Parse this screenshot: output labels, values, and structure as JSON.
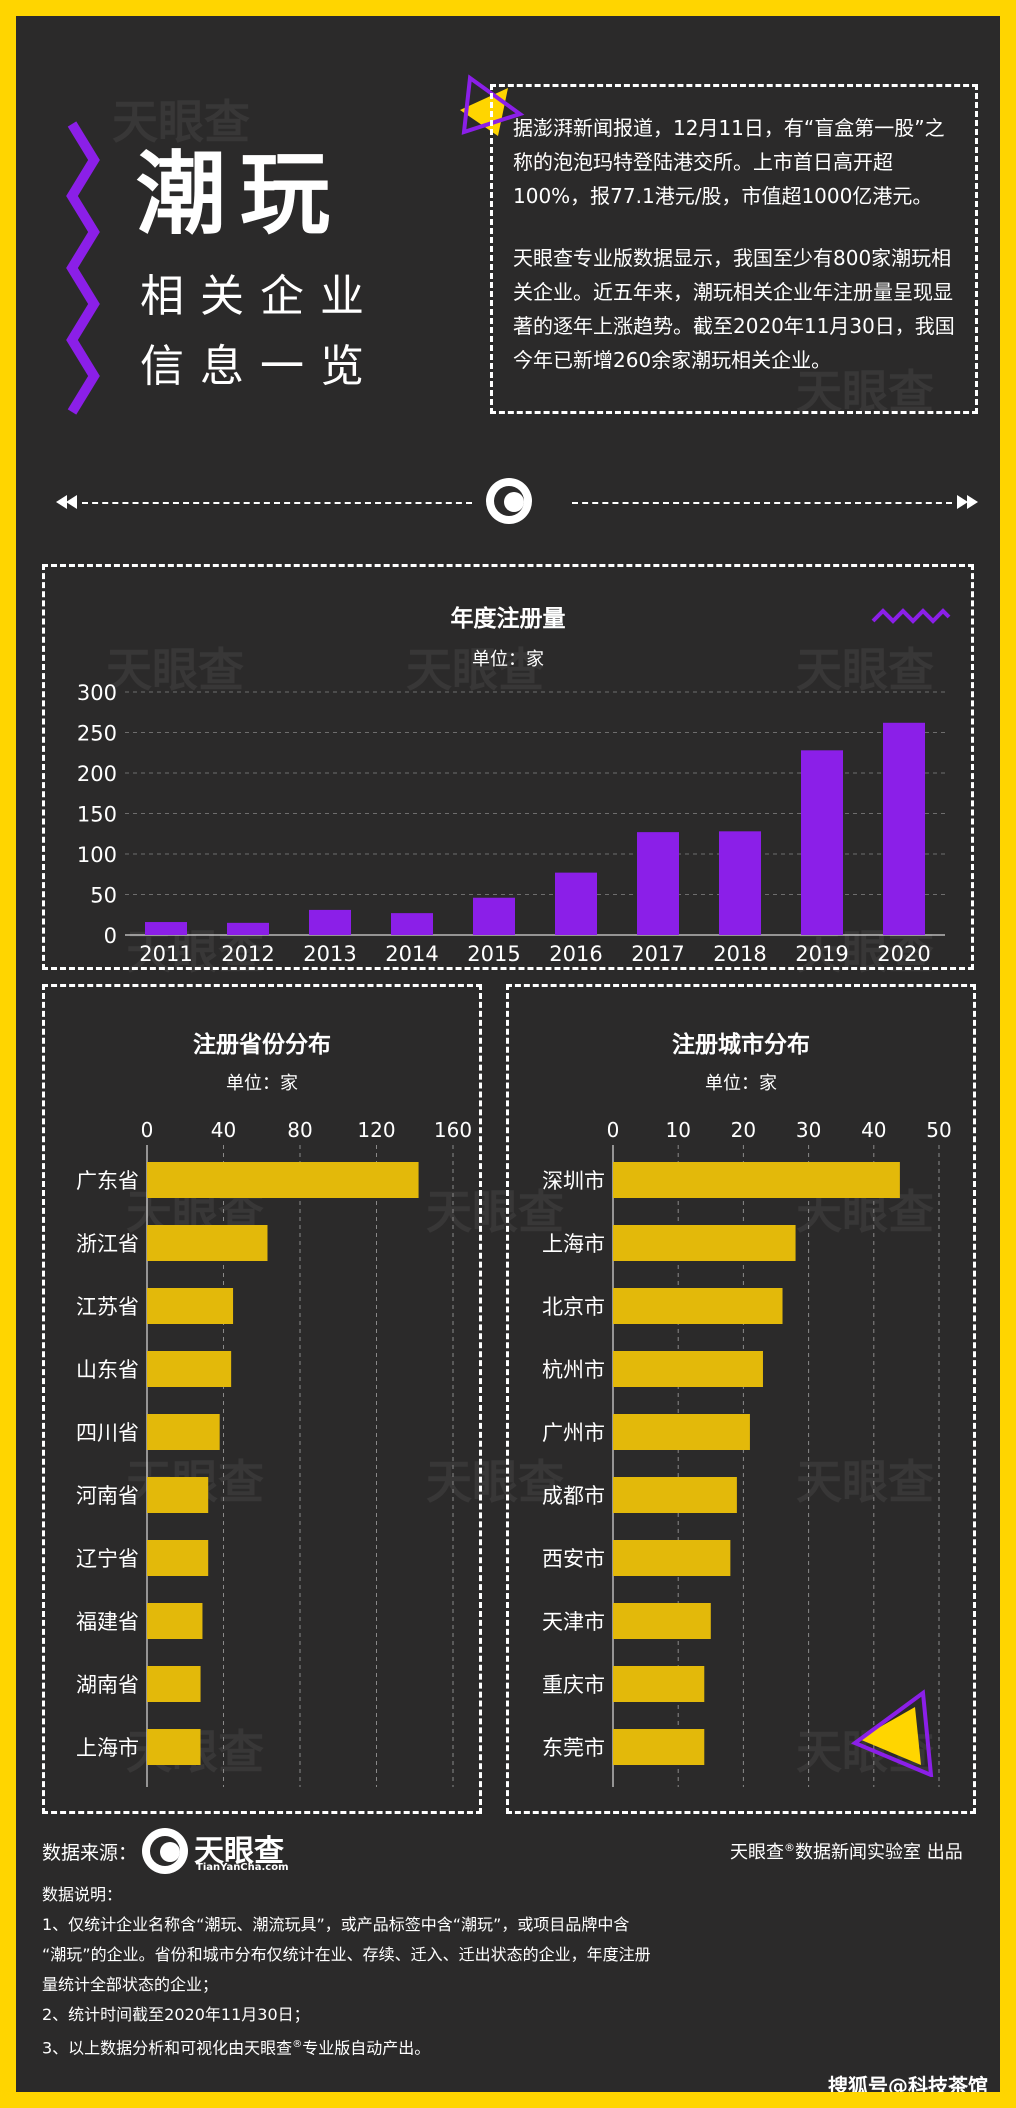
{
  "header": {
    "title_main": "潮玩",
    "title_sub_1": "相关企业",
    "title_sub_2": "信息一览"
  },
  "intro": {
    "para1": "据澎湃新闻报道，12月11日，有“盲盒第一股”之称的泡泡玛特登陆港交所。上市首日高开超100%，报77.1港元/股，市值超1000亿港元。",
    "para2": "天眼查专业版数据显示，我国至少有800家潮玩相关企业。近五年来，潮玩相关企业年注册量呈现显著的逐年上涨趋势。截至2020年11月30日，我国今年已新增260余家潮玩相关企业。"
  },
  "watermark": {
    "text": "天眼查",
    "sub": "TianYanCha.com"
  },
  "colors": {
    "background": "#2B2A2A",
    "border": "#FFD500",
    "purple": "#8B1FE8",
    "yellow": "#E3B90A"
  },
  "chart_data": [
    {
      "type": "bar",
      "title": "年度注册量",
      "unit": "单位：家",
      "categories": [
        "2011",
        "2012",
        "2013",
        "2014",
        "2015",
        "2016",
        "2017",
        "2018",
        "2019",
        "2020"
      ],
      "values": [
        16,
        15,
        31,
        27,
        46,
        77,
        127,
        128,
        228,
        262
      ],
      "yticks": [
        0,
        50,
        100,
        150,
        200,
        250,
        300
      ],
      "ylim": [
        0,
        300
      ],
      "grid": true
    },
    {
      "type": "bar",
      "orientation": "horizontal",
      "title": "注册省份分布",
      "unit": "单位：家",
      "categories": [
        "广东省",
        "浙江省",
        "江苏省",
        "山东省",
        "四川省",
        "河南省",
        "辽宁省",
        "福建省",
        "湖南省",
        "上海市"
      ],
      "values": [
        142,
        63,
        45,
        44,
        38,
        32,
        32,
        29,
        28,
        28
      ],
      "xticks": [
        0,
        40,
        80,
        120,
        160
      ],
      "xlim": [
        0,
        160
      ],
      "grid": true
    },
    {
      "type": "bar",
      "orientation": "horizontal",
      "title": "注册城市分布",
      "unit": "单位：家",
      "categories": [
        "深圳市",
        "上海市",
        "北京市",
        "杭州市",
        "广州市",
        "成都市",
        "西安市",
        "天津市",
        "重庆市",
        "东莞市"
      ],
      "values": [
        44,
        28,
        26,
        23,
        21,
        19,
        18,
        15,
        14,
        14
      ],
      "xticks": [
        0,
        10,
        20,
        30,
        40,
        50
      ],
      "xlim": [
        0,
        50
      ],
      "grid": true
    }
  ],
  "footer": {
    "source_label": "数据来源：",
    "logo_text": "天眼查",
    "logo_sub": "TianYanCha.com",
    "credit_prefix": "天眼查",
    "credit_mark": "®",
    "credit_suffix": "数据新闻实验室 出品",
    "notes_title": "数据说明：",
    "note1_line1": "1、仅统计企业名称含“潮玩、潮流玩具”，或产品标签中含“潮玩”，或项目品牌中含",
    "note1_line2": "“潮玩”的企业。省份和城市分布仅统计在业、存续、迁入、迁出状态的企业，年度注册",
    "note1_line3": "量统计全部状态的企业；",
    "note2": "2、统计时间截至2020年11月30日；",
    "note3_prefix": "3、以上数据分析和可视化由天眼查",
    "note3_mark": "®",
    "note3_suffix": "专业版自动产出。",
    "corner": "搜狐号@科技茶馆"
  }
}
